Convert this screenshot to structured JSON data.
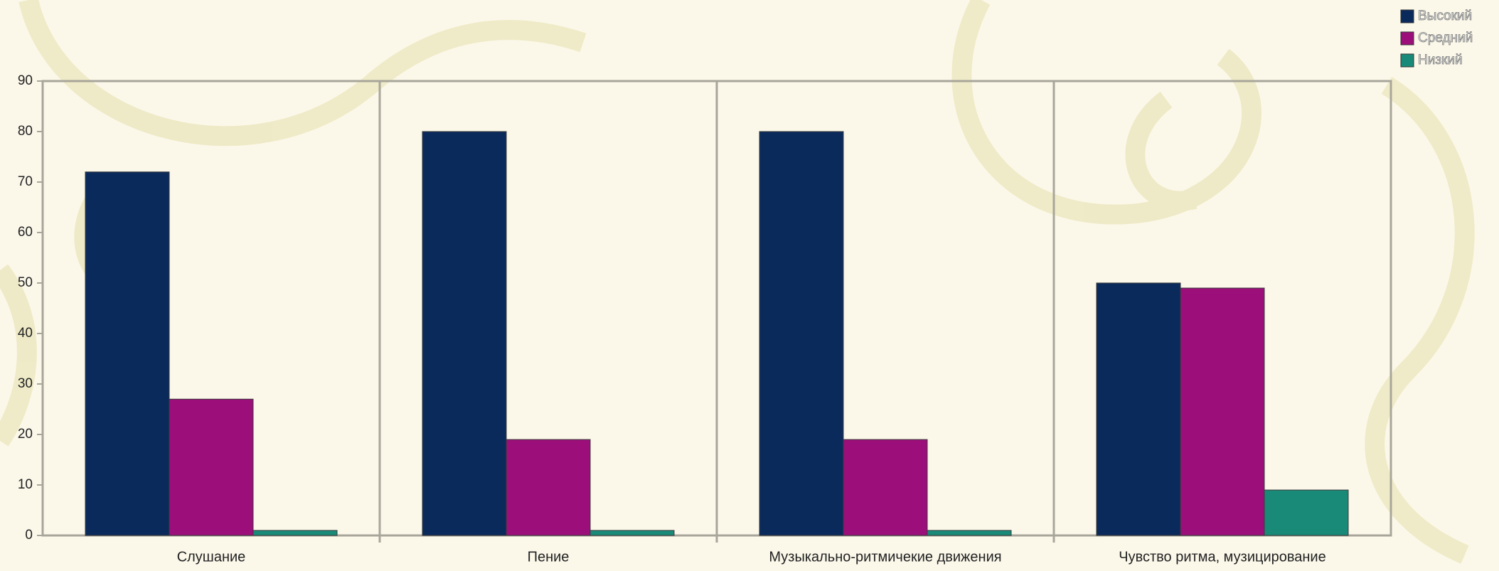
{
  "chart_data": {
    "type": "bar",
    "categories": [
      "Слушание",
      "Пение",
      "Музыкально-ритмичекие движения",
      "Чувство ритма, музицирование"
    ],
    "series": [
      {
        "name": "Высокий",
        "color": "#0b2a5c",
        "values": [
          72,
          80,
          80,
          50
        ]
      },
      {
        "name": "Средний",
        "color": "#9c0f7a",
        "values": [
          27,
          19,
          19,
          49
        ]
      },
      {
        "name": "Низкий",
        "color": "#1a8a78",
        "values": [
          1,
          1,
          1,
          9
        ]
      }
    ],
    "ylim": [
      0,
      90
    ],
    "yticks": [
      0,
      10,
      20,
      30,
      40,
      50,
      60,
      70,
      80,
      90
    ],
    "legend": "top-right"
  }
}
